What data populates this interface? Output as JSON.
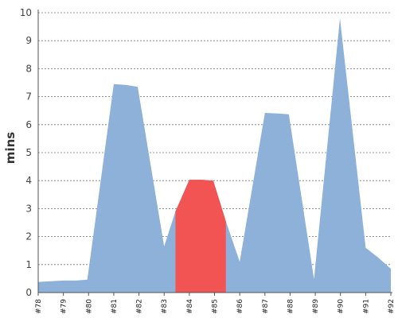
{
  "chart_data": {
    "type": "area",
    "title": "",
    "xlabel": "",
    "ylabel": "mins",
    "ylim": [
      0,
      10
    ],
    "yticks": [
      0,
      1,
      2,
      3,
      4,
      5,
      6,
      7,
      8,
      9,
      10
    ],
    "grid": true,
    "categories": [
      "#78",
      "#79",
      "#80",
      "#81",
      "#82",
      "#83",
      "#84",
      "#85",
      "#86",
      "#87",
      "#88",
      "#89",
      "#90",
      "#91",
      "#92"
    ],
    "series": [
      {
        "color": "#8eb1da",
        "points": [
          {
            "x": 0.0,
            "y": 0.38
          },
          {
            "x": 1.0,
            "y": 0.43
          },
          {
            "x": 1.5,
            "y": 0.43
          },
          {
            "x": 1.95,
            "y": 0.46
          },
          {
            "x": 3.0,
            "y": 7.45
          },
          {
            "x": 3.5,
            "y": 7.42
          },
          {
            "x": 3.95,
            "y": 7.35
          },
          {
            "x": 5.0,
            "y": 1.65
          },
          {
            "x": 5.45,
            "y": 2.9
          },
          {
            "x": 6.0,
            "y": 4.03
          },
          {
            "x": 6.5,
            "y": 4.03
          },
          {
            "x": 6.95,
            "y": 4.0
          },
          {
            "x": 7.45,
            "y": 2.55
          },
          {
            "x": 8.0,
            "y": 1.1
          },
          {
            "x": 9.0,
            "y": 6.42
          },
          {
            "x": 9.5,
            "y": 6.4
          },
          {
            "x": 9.95,
            "y": 6.37
          },
          {
            "x": 10.95,
            "y": 0.48
          },
          {
            "x": 11.98,
            "y": 9.8
          },
          {
            "x": 13.0,
            "y": 1.6
          },
          {
            "x": 13.5,
            "y": 1.25
          },
          {
            "x": 14.0,
            "y": 0.85
          }
        ]
      }
    ],
    "highlight": {
      "color": "#f25353",
      "x_start": 5.45,
      "x_end": 7.45
    }
  }
}
